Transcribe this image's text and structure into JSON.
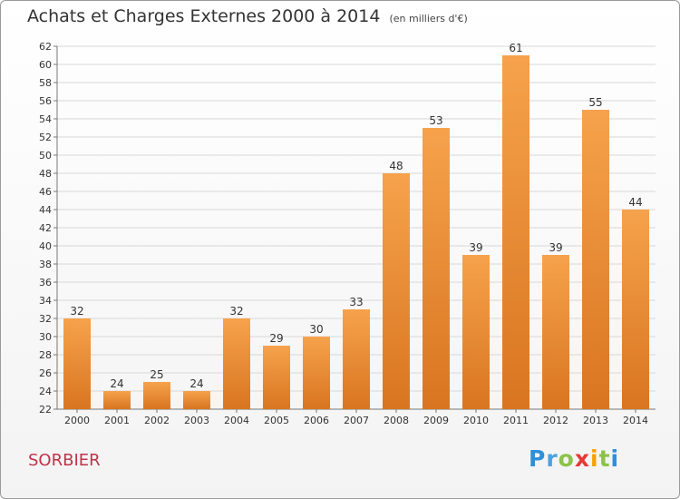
{
  "header": {
    "title": "Achats et Charges Externes 2000 à 2014",
    "unit": "(en milliers d'€)"
  },
  "footer": {
    "city": "SORBIER",
    "logo_letters": [
      "P",
      "r",
      "o",
      "x",
      "i",
      "t",
      "i"
    ]
  },
  "colors": {
    "bar_top": "#f6a24c",
    "bar_bottom": "#d97520",
    "grid": "#d8d8d8",
    "city": "#c0334a",
    "logo": [
      "#2f8fd8",
      "#4aa3df",
      "#8bc34a",
      "#e53935",
      "#f4a300",
      "#8bc34a",
      "#2f8fd8"
    ]
  },
  "chart_data": {
    "type": "bar",
    "categories": [
      "2000",
      "2001",
      "2002",
      "2003",
      "2004",
      "2005",
      "2006",
      "2007",
      "2008",
      "2009",
      "2010",
      "2011",
      "2012",
      "2013",
      "2014"
    ],
    "values": [
      32,
      24,
      25,
      24,
      32,
      29,
      30,
      33,
      48,
      53,
      39,
      61,
      39,
      55,
      44
    ],
    "ylim": [
      22,
      62
    ],
    "ytick_step": 2,
    "grid": true,
    "data_labels": true
  }
}
